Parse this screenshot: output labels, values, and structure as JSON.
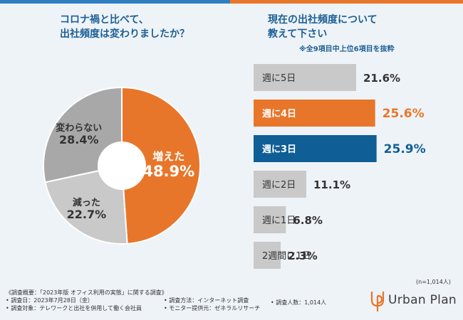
{
  "colors": {
    "blue": "#2f7fc1",
    "orange": "#e8762a",
    "gray_dark": "#a8a8a8",
    "gray_light": "#c9c9c9",
    "navy_bar": "#0f5f96"
  },
  "left_panel": {
    "title_line1": "コロナ禍と比べて、",
    "title_line2": "出社頻度は変わりましたか？"
  },
  "right_panel": {
    "title_line1": "現在の出社頻度について",
    "title_line2": "教えて下さい",
    "note": "※全9項目中上位6項目を抜粋"
  },
  "chart_data": [
    {
      "type": "pie",
      "title": "コロナ禍と比べて、出社頻度は変わりましたか？",
      "categories": [
        "増えた",
        "減った",
        "変わらない"
      ],
      "values": [
        48.9,
        22.7,
        28.4
      ],
      "value_labels": [
        "48.9%",
        "22.7%",
        "28.4%"
      ],
      "donut": true
    },
    {
      "type": "bar",
      "orientation": "horizontal",
      "title": "現在の出社頻度について教えて下さい",
      "categories": [
        "週に5日",
        "週に4日",
        "週に3日",
        "週に2日",
        "週に1日",
        "2週間に1日"
      ],
      "values": [
        21.6,
        25.6,
        25.9,
        11.1,
        6.8,
        2.3
      ],
      "value_labels": [
        "21.6%",
        "25.6%",
        "25.9%",
        "11.1%",
        "6.8%",
        "2.3%"
      ],
      "highlight": [
        "",
        "orange",
        "blue",
        "",
        "",
        ""
      ],
      "xlim": [
        0,
        30
      ]
    }
  ],
  "sample_note": "(n=1,014人)",
  "footer": {
    "line1": "《調査概要：「2023年版 オフィス利用の実態」に関する調査》",
    "date": "• 調査日：2023年7月28日（金）",
    "method": "• 調査方法：インターネット調査",
    "count": "• 調査人数：1,014人",
    "target": "• 調査対象：テレワークと出社を併用して働く会社員",
    "provider": "• モニター提供元：ゼネラルリサーチ"
  },
  "logo": {
    "text": "Urban Plan"
  }
}
